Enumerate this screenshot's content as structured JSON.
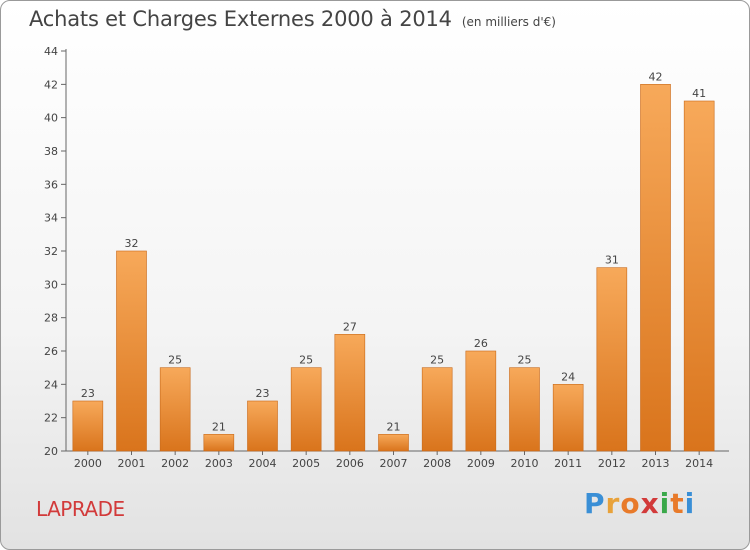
{
  "header": {
    "title": "Achats et Charges Externes 2000 à 2014",
    "unit": "(en milliers d'€)"
  },
  "footer": {
    "place": "LAPRADE",
    "brand_letters": [
      "P",
      "r",
      "o",
      "x",
      "i",
      "t",
      "i"
    ],
    "brand_colors": [
      "#3a8fd6",
      "#e8a23a",
      "#e87a2a",
      "#d23a3a",
      "#3aa84a",
      "#e87a2a",
      "#3a8fd6"
    ]
  },
  "colors": {
    "bar_light": "#f7a95a",
    "bar_dark": "#d9741c",
    "bar_edge": "#c86818",
    "place": "#d23a3a"
  },
  "chart_data": {
    "type": "bar",
    "title": "Achats et Charges Externes 2000 à 2014",
    "subtitle": "(en milliers d'€)",
    "categories": [
      "2000",
      "2001",
      "2002",
      "2003",
      "2004",
      "2005",
      "2006",
      "2007",
      "2008",
      "2009",
      "2010",
      "2011",
      "2012",
      "2013",
      "2014"
    ],
    "values": [
      23,
      32,
      25,
      21,
      23,
      25,
      27,
      21,
      25,
      26,
      25,
      24,
      31,
      42,
      41
    ],
    "ylim": [
      20,
      44
    ],
    "yticks": [
      20,
      22,
      24,
      26,
      28,
      30,
      32,
      34,
      36,
      38,
      40,
      42,
      44
    ],
    "grid": false,
    "data_labels": true
  }
}
